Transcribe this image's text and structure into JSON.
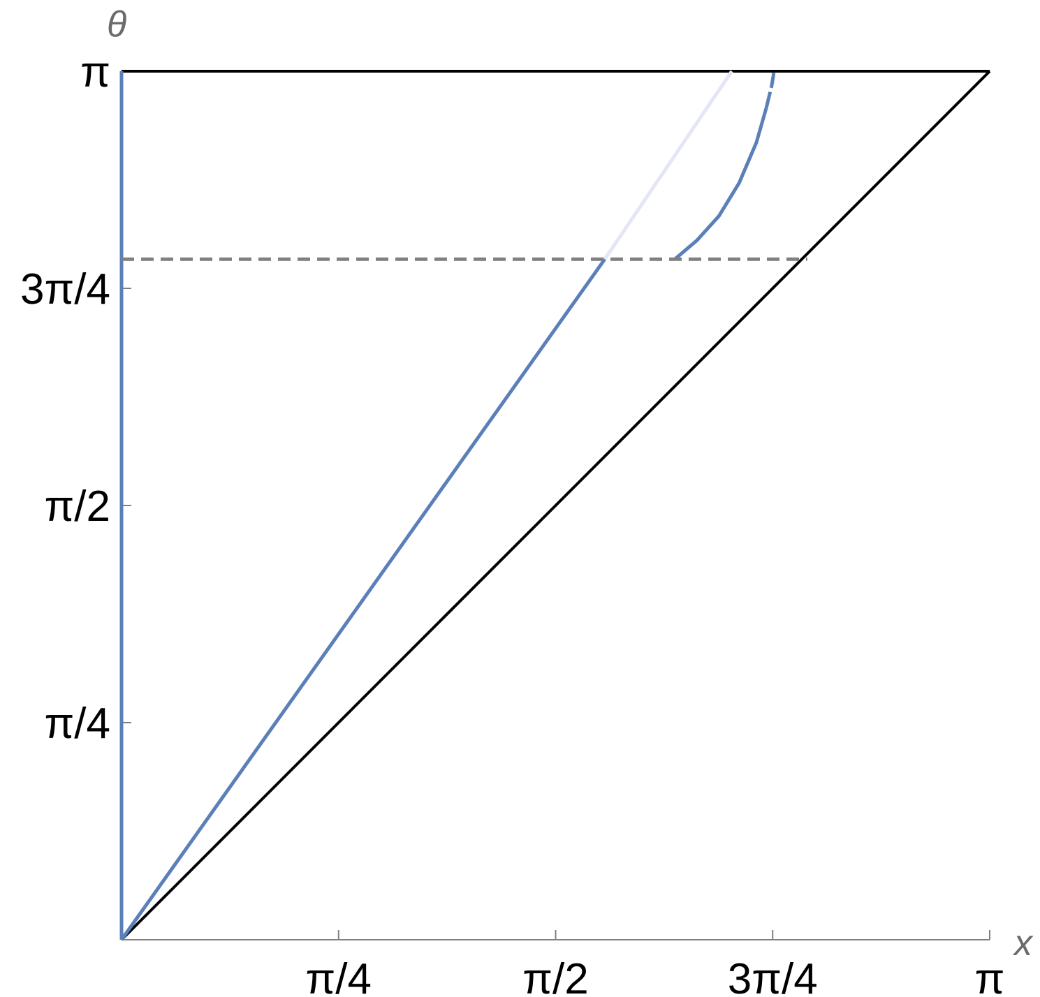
{
  "chart_data": {
    "type": "line",
    "title": "",
    "xlabel": "x",
    "ylabel": "θ",
    "xlim": [
      0,
      3.14159
    ],
    "ylim": [
      0,
      3.14159
    ],
    "x_ticks": [
      {
        "value": 0.7854,
        "label": "π/4"
      },
      {
        "value": 1.5708,
        "label": "π/2"
      },
      {
        "value": 2.3562,
        "label": "3π/4"
      },
      {
        "value": 3.14159,
        "label": "π"
      }
    ],
    "y_ticks": [
      {
        "value": 0.7854,
        "label": "π/4"
      },
      {
        "value": 1.5708,
        "label": "π/2"
      },
      {
        "value": 2.3562,
        "label": "3π/4"
      },
      {
        "value": 3.14159,
        "label": "π"
      }
    ],
    "series": [
      {
        "style": "solid",
        "color": "#000000",
        "x": [
          0,
          3.14159
        ],
        "y": [
          0,
          3.14159
        ]
      },
      {
        "style": "solid",
        "color": "#000000",
        "x": [
          0,
          3.14159
        ],
        "y": [
          3.14159,
          3.14159
        ]
      },
      {
        "style": "solid",
        "color": "#5b7fb8",
        "x": [
          0,
          0
        ],
        "y": [
          0,
          3.14159
        ]
      },
      {
        "style": "solid",
        "color": "#5b7fb8",
        "x": [
          0,
          1.7487
        ],
        "y": [
          0,
          2.4618
        ]
      },
      {
        "style": "solid",
        "color": "#e3e6f8",
        "x": [
          1.7487,
          2.2082
        ],
        "y": [
          2.4618,
          3.14159
        ]
      },
      {
        "style": "solid",
        "color": "#5b7fb8",
        "x": [
          2.0023,
          2.0821,
          2.1617,
          2.2351,
          2.2974,
          2.3329
        ],
        "y": [
          2.4618,
          2.5297,
          2.6177,
          2.7378,
          2.8839,
          3.0078
        ]
      },
      {
        "style": "dashed",
        "color": "#5b7fb8",
        "x": [
          2.3329,
          2.3526,
          2.359,
          2.3598
        ],
        "y": [
          3.0078,
          3.0882,
          3.1278,
          3.1358
        ]
      },
      {
        "style": "dashed",
        "color": "#808080",
        "x": [
          0,
          2.4815
        ],
        "y": [
          2.4618,
          2.4618
        ]
      }
    ],
    "grid": false,
    "legend": "none",
    "colors": {
      "axis": "#808080",
      "label": "#6b6b6b",
      "curve": "#5b7fb8",
      "faded_curve": "#e3e6f8",
      "reference": "#000000",
      "threshold": "#808080"
    }
  }
}
